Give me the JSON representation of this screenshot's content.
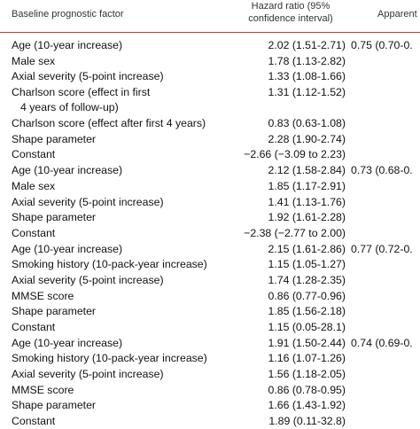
{
  "header": {
    "factor": "Baseline prognostic factor",
    "hr_line1": "Hazard ratio (95%",
    "hr_line2": "confidence interval)",
    "apparent": "Apparent"
  },
  "rows": [
    {
      "factor": "Age (10-year increase)",
      "hr": "2.02 (1.51-2.71)",
      "apparent": "0.75 (0.70-0."
    },
    {
      "factor": "Male sex",
      "hr": "1.78 (1.13-2.82)",
      "apparent": ""
    },
    {
      "factor": "Axial severity (5-point increase)",
      "hr": "1.33 (1.08-1.66)",
      "apparent": ""
    },
    {
      "factor": "Charlson score (effect in first",
      "factor2": "4 years of follow-up)",
      "hr": "1.31 (1.12-1.52)",
      "apparent": ""
    },
    {
      "factor": "Charlson score (effect after first 4 years)",
      "hr": "0.83 (0.63-1.08)",
      "apparent": ""
    },
    {
      "factor": "Shape parameter",
      "hr": "2.28 (1.90-2.74)",
      "apparent": ""
    },
    {
      "factor": "Constant",
      "hr": "−2.66 (−3.09 to 2.23)",
      "apparent": ""
    },
    {
      "factor": "Age (10-year increase)",
      "hr": "2.12 (1.58-2.84)",
      "apparent": "0.73 (0.68-0."
    },
    {
      "factor": "Male sex",
      "hr": "1.85 (1.17-2.91)",
      "apparent": ""
    },
    {
      "factor": "Axial severity (5-point increase)",
      "hr": "1.41 (1.13-1.76)",
      "apparent": ""
    },
    {
      "factor": "Shape parameter",
      "hr": "1.92 (1.61-2.28)",
      "apparent": ""
    },
    {
      "factor": "Constant",
      "hr": "−2.38 (−2.77 to 2.00)",
      "apparent": ""
    },
    {
      "factor": "Age (10-year increase)",
      "hr": "2.15 (1.61-2.86)",
      "apparent": "0.77 (0.72-0."
    },
    {
      "factor": "Smoking history (10-pack-year increase)",
      "hr": "1.15 (1.05-1.27)",
      "apparent": ""
    },
    {
      "factor": "Axial severity (5-point increase)",
      "hr": "1.74 (1.28-2.35)",
      "apparent": ""
    },
    {
      "factor": "MMSE score",
      "hr": "0.86 (0.77-0.96)",
      "apparent": ""
    },
    {
      "factor": "Shape parameter",
      "hr": "1.85 (1.56-2.18)",
      "apparent": ""
    },
    {
      "factor": "Constant",
      "hr": "1.15 (0.05-28.1)",
      "apparent": ""
    },
    {
      "factor": "Age (10-year increase)",
      "hr": "1.91 (1.50-2.44)",
      "apparent": "0.74 (0.69-0."
    },
    {
      "factor": "Smoking history (10-pack-year increase)",
      "hr": "1.16 (1.07-1.26)",
      "apparent": ""
    },
    {
      "factor": "Axial severity (5-point increase)",
      "hr": "1.56 (1.18-2.05)",
      "apparent": ""
    },
    {
      "factor": "MMSE score",
      "hr": "0.86 (0.78-0.95)",
      "apparent": ""
    },
    {
      "factor": "Shape parameter",
      "hr": "1.66 (1.43-1.92)",
      "apparent": ""
    },
    {
      "factor": "Constant",
      "hr": "1.89 (0.11-32.8)",
      "apparent": ""
    }
  ]
}
